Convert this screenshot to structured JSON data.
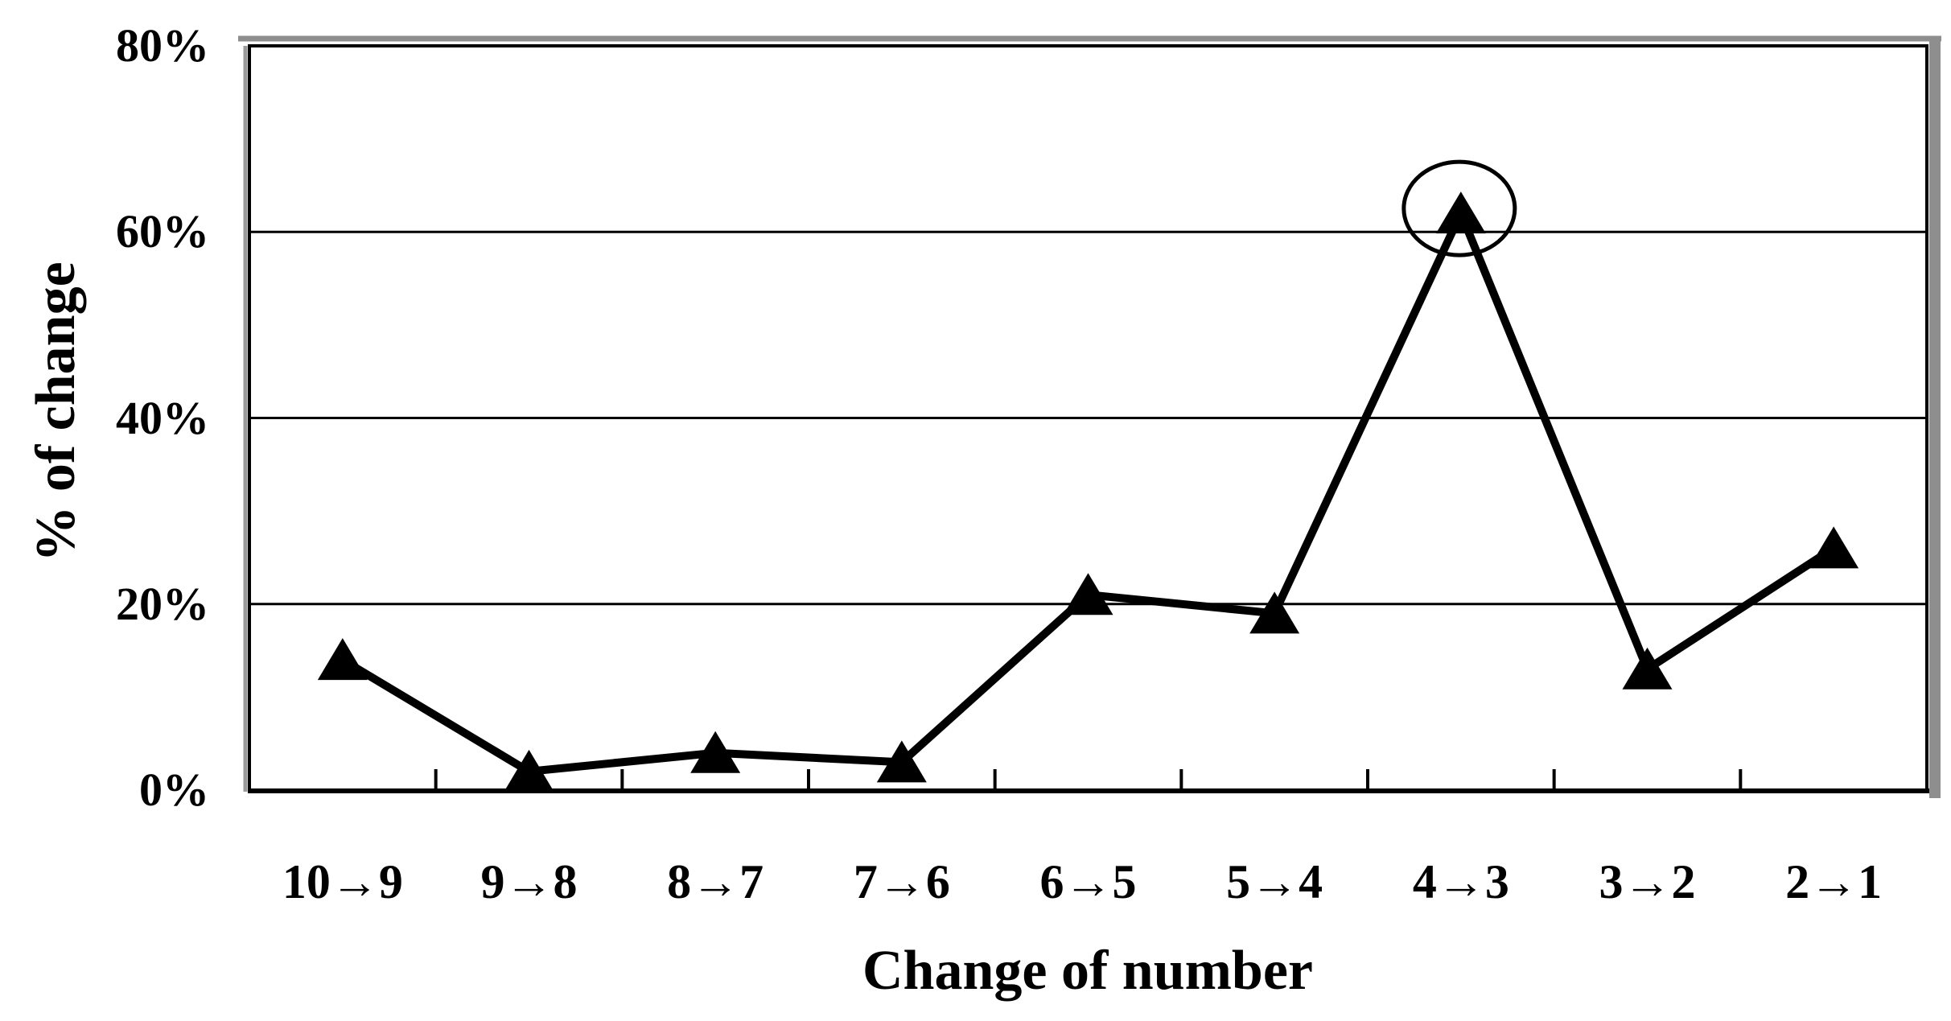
{
  "chart_data": {
    "type": "line",
    "title": "",
    "categories": [
      "10→9",
      "9→8",
      "8→7",
      "7→6",
      "6→5",
      "5→4",
      "4→3",
      "3→2",
      "2→1"
    ],
    "values": [
      14,
      2,
      4,
      3,
      21,
      19,
      62,
      13,
      26
    ],
    "xlabel": "Change of number",
    "ylabel": "% of change",
    "y_tick_labels": [
      "0%",
      "20%",
      "40%",
      "60%",
      "80%"
    ],
    "y_tick_values": [
      0,
      20,
      40,
      60,
      80
    ],
    "ylim": [
      0,
      80
    ],
    "grid": "horizontal",
    "legend": "none",
    "marker": "filled-triangle",
    "line_color": "#000000",
    "marker_color": "#000000",
    "background_color": "#ffffff",
    "annotation": {
      "shape": "ellipse-outline",
      "category": "4→3",
      "category_index": 6,
      "value": 62
    }
  }
}
